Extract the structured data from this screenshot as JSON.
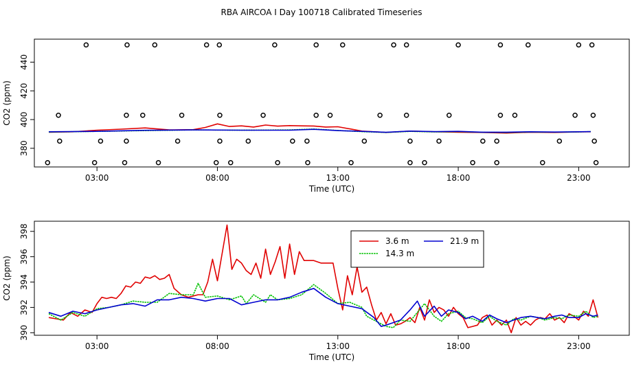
{
  "title": "RBA AIRCOA I  Day 100718  Calibrated Timeseries",
  "colors": {
    "3.6 m": "#e00000",
    "14.3 m": "#00c000",
    "21.9 m": "#0000d0",
    "axis": "#000000"
  },
  "chart_data": [
    {
      "type": "line",
      "name": "top",
      "xlabel": "Time (UTC)",
      "ylabel": "CO2 (ppm)",
      "xlim": [
        0.4,
        25.1
      ],
      "ylim": [
        367,
        456
      ],
      "xticks": [
        3,
        8,
        13,
        18,
        23
      ],
      "xtick_labels": [
        "03:00",
        "08:00",
        "13:00",
        "18:00",
        "23:00"
      ],
      "yticks": [
        380,
        400,
        420,
        440
      ],
      "ytick_labels": [
        "380",
        "400",
        "420",
        "440"
      ],
      "calibration_points": {
        "marker": "open-circle",
        "x": [
          2.55,
          4.25,
          5.4,
          7.55,
          8.08,
          10.38,
          12.1,
          13.2,
          15.32,
          15.85,
          18.0,
          19.75,
          20.9,
          23.0,
          23.55,
          1.4,
          4.22,
          4.9,
          6.52,
          8.1,
          9.9,
          12.1,
          12.68,
          14.75,
          15.85,
          17.62,
          19.75,
          20.35,
          22.85,
          23.6,
          0.95,
          2.9,
          4.15,
          5.55,
          7.95,
          8.55,
          10.5,
          11.75,
          13.55,
          16.0,
          16.6,
          18.6,
          19.6,
          21.5,
          23.72,
          1.45,
          3.15,
          4.22,
          6.35,
          8.1,
          9.28,
          11.12,
          11.72,
          14.1,
          16.0,
          17.2,
          19.02,
          19.6,
          22.2,
          23.65
        ],
        "y": [
          452,
          452,
          452,
          452,
          452,
          452,
          452,
          452,
          452,
          452,
          452,
          452,
          452,
          452,
          452,
          403,
          403,
          403,
          403,
          403,
          403,
          403,
          403,
          403,
          403,
          403,
          403,
          403,
          403,
          403,
          370,
          370,
          370,
          370,
          370,
          370,
          370,
          370,
          370,
          370,
          370,
          370,
          370,
          370,
          370,
          385,
          385,
          385,
          385,
          385,
          385,
          385,
          385,
          385,
          385,
          385,
          385,
          385,
          385,
          385
        ]
      },
      "series": [
        {
          "name": "3.6 m",
          "x": [
            1.0,
            2.0,
            3.0,
            4.0,
            5.0,
            6.0,
            7.0,
            7.5,
            8.0,
            8.5,
            9.0,
            9.5,
            10.0,
            10.5,
            11.0,
            11.5,
            12.0,
            12.5,
            13.0,
            13.5,
            14.0,
            15.0,
            16.0,
            17.0,
            18.0,
            19.0,
            20.0,
            21.0,
            22.0,
            23.0,
            23.5
          ],
          "y": [
            391.2,
            391.5,
            392.6,
            393.3,
            394.2,
            392.8,
            393.0,
            394.5,
            397.0,
            395.2,
            395.6,
            394.8,
            396.2,
            395.4,
            395.8,
            395.6,
            395.5,
            394.8,
            395.0,
            393.5,
            392.0,
            391.0,
            392.0,
            391.5,
            391.2,
            391.0,
            390.6,
            391.2,
            391.0,
            391.4,
            391.5
          ]
        },
        {
          "name": "14.3 m",
          "x": [
            1.0,
            3.0,
            5.0,
            7.0,
            9.0,
            11.0,
            12.0,
            13.0,
            14.0,
            15.0,
            16.0,
            17.0,
            18.0,
            19.0,
            20.0,
            21.0,
            22.0,
            23.0,
            23.5
          ],
          "y": [
            391.3,
            391.8,
            392.3,
            392.8,
            392.6,
            392.8,
            393.4,
            392.4,
            391.6,
            391.0,
            391.8,
            391.4,
            391.6,
            391.1,
            391.0,
            391.3,
            391.2,
            391.4,
            391.6
          ]
        },
        {
          "name": "21.9 m",
          "x": [
            1.0,
            3.0,
            5.0,
            7.0,
            9.0,
            11.0,
            12.0,
            13.0,
            14.0,
            15.0,
            16.0,
            17.0,
            18.0,
            19.0,
            20.0,
            21.0,
            22.0,
            23.0,
            23.5
          ],
          "y": [
            391.5,
            391.8,
            392.5,
            392.8,
            392.6,
            392.6,
            393.2,
            392.3,
            391.8,
            391.1,
            392.0,
            391.6,
            391.8,
            391.2,
            391.2,
            391.5,
            391.3,
            391.5,
            391.6
          ]
        }
      ]
    },
    {
      "type": "line",
      "name": "bottom",
      "xlabel": "Time (UTC)",
      "ylabel": "CO2 (ppm)",
      "xlim": [
        0.4,
        25.1
      ],
      "ylim": [
        389.8,
        398.8
      ],
      "xticks": [
        3,
        8,
        13,
        18,
        23
      ],
      "xtick_labels": [
        "03:00",
        "08:00",
        "13:00",
        "18:00",
        "23:00"
      ],
      "yticks": [
        390,
        392,
        394,
        396,
        398
      ],
      "ytick_labels": [
        "390",
        "392",
        "394",
        "396",
        "398"
      ],
      "legend": {
        "position": "top-center",
        "entries": [
          "3.6 m",
          "21.9 m",
          "14.3 m"
        ]
      },
      "series": [
        {
          "name": "3.6 m",
          "x": [
            1.0,
            1.3,
            1.6,
            1.9,
            2.2,
            2.5,
            2.8,
            3.0,
            3.2,
            3.4,
            3.6,
            3.8,
            4.0,
            4.2,
            4.4,
            4.6,
            4.8,
            5.0,
            5.2,
            5.4,
            5.6,
            5.8,
            6.0,
            6.2,
            6.5,
            6.8,
            7.0,
            7.2,
            7.4,
            7.6,
            7.8,
            8.0,
            8.2,
            8.4,
            8.6,
            8.8,
            9.0,
            9.2,
            9.4,
            9.6,
            9.8,
            10.0,
            10.2,
            10.4,
            10.6,
            10.8,
            11.0,
            11.2,
            11.4,
            11.6,
            11.8,
            12.0,
            12.3,
            12.6,
            12.8,
            13.0,
            13.2,
            13.4,
            13.6,
            13.8,
            14.0,
            14.2,
            14.4,
            14.6,
            14.8,
            15.0,
            15.2,
            15.4,
            15.6,
            15.8,
            16.0,
            16.2,
            16.4,
            16.6,
            16.8,
            17.0,
            17.2,
            17.4,
            17.6,
            17.8,
            18.0,
            18.2,
            18.4,
            18.6,
            18.8,
            19.0,
            19.2,
            19.4,
            19.6,
            19.8,
            20.0,
            20.2,
            20.4,
            20.6,
            20.8,
            21.0,
            21.2,
            21.4,
            21.6,
            21.8,
            22.0,
            22.2,
            22.4,
            22.6,
            22.8,
            23.0,
            23.2,
            23.4,
            23.6,
            23.8
          ],
          "y": [
            391.2,
            391.1,
            391.0,
            391.6,
            391.3,
            391.8,
            391.6,
            392.3,
            392.8,
            392.7,
            392.8,
            392.7,
            393.1,
            393.7,
            393.6,
            394.0,
            393.9,
            394.4,
            394.3,
            394.5,
            394.2,
            394.3,
            394.6,
            393.5,
            393.0,
            392.8,
            392.9,
            393.0,
            393.0,
            394.0,
            395.8,
            394.1,
            396.3,
            398.5,
            395.0,
            395.8,
            395.5,
            394.9,
            394.6,
            395.5,
            394.3,
            396.6,
            394.6,
            395.6,
            396.8,
            394.3,
            397.0,
            394.6,
            396.4,
            395.7,
            395.7,
            395.7,
            395.5,
            395.5,
            395.5,
            393.5,
            391.8,
            394.5,
            393.0,
            395.2,
            393.2,
            393.6,
            392.2,
            391.0,
            391.6,
            390.7,
            391.5,
            390.6,
            390.7,
            390.9,
            391.2,
            390.8,
            392.0,
            391.0,
            392.6,
            391.6,
            392.0,
            391.8,
            391.3,
            392.0,
            391.5,
            391.2,
            390.4,
            390.5,
            390.6,
            391.2,
            391.4,
            390.6,
            391.0,
            390.6,
            391.0,
            390.0,
            391.2,
            390.6,
            390.9,
            390.6,
            391.0,
            391.2,
            391.1,
            391.5,
            391.0,
            391.2,
            390.8,
            391.5,
            391.3,
            391.0,
            391.7,
            391.3,
            392.6,
            391.2
          ]
        },
        {
          "name": "14.3 m",
          "x": [
            1.0,
            1.5,
            2.0,
            2.5,
            3.0,
            3.5,
            4.0,
            4.5,
            5.0,
            5.5,
            6.0,
            6.5,
            7.0,
            7.2,
            7.5,
            8.0,
            8.5,
            9.0,
            9.2,
            9.5,
            10.0,
            10.2,
            10.5,
            11.0,
            11.5,
            12.0,
            12.5,
            13.0,
            13.5,
            14.0,
            14.2,
            14.5,
            14.8,
            15.0,
            15.3,
            15.6,
            16.0,
            16.3,
            16.6,
            17.0,
            17.3,
            17.6,
            18.0,
            18.3,
            18.6,
            19.0,
            19.3,
            19.6,
            20.0,
            20.3,
            20.6,
            21.0,
            21.3,
            21.6,
            22.0,
            22.3,
            22.6,
            23.0,
            23.3,
            23.6,
            23.8
          ],
          "y": [
            391.5,
            391.0,
            391.6,
            391.3,
            391.9,
            392.0,
            392.2,
            392.5,
            392.4,
            392.4,
            393.1,
            393.0,
            393.0,
            393.9,
            392.8,
            392.9,
            392.6,
            392.9,
            392.3,
            393.0,
            392.4,
            393.0,
            392.6,
            392.7,
            393.0,
            393.8,
            393.1,
            392.3,
            392.4,
            392.0,
            391.3,
            391.0,
            390.7,
            390.5,
            390.4,
            391.0,
            390.9,
            391.6,
            392.3,
            391.3,
            390.9,
            391.5,
            391.7,
            391.2,
            391.1,
            390.8,
            391.3,
            390.9,
            390.6,
            391.1,
            391.0,
            391.3,
            391.2,
            391.0,
            391.2,
            391.1,
            391.4,
            391.3,
            391.7,
            391.2,
            391.3
          ]
        },
        {
          "name": "21.9 m",
          "x": [
            1.0,
            1.5,
            2.0,
            2.5,
            3.0,
            3.5,
            4.0,
            4.5,
            5.0,
            5.5,
            6.0,
            6.5,
            7.0,
            7.5,
            8.0,
            8.5,
            9.0,
            9.5,
            10.0,
            10.5,
            11.0,
            11.5,
            12.0,
            12.5,
            13.0,
            13.5,
            14.0,
            14.5,
            14.8,
            15.0,
            15.3,
            15.6,
            16.0,
            16.3,
            16.6,
            17.0,
            17.3,
            17.6,
            18.0,
            18.3,
            18.6,
            19.0,
            19.3,
            19.6,
            20.0,
            20.3,
            20.6,
            21.0,
            21.3,
            21.6,
            22.0,
            22.3,
            22.6,
            23.0,
            23.3,
            23.6,
            23.8
          ],
          "y": [
            391.6,
            391.3,
            391.7,
            391.5,
            391.8,
            392.0,
            392.2,
            392.3,
            392.1,
            392.6,
            392.6,
            392.8,
            392.7,
            392.5,
            392.7,
            392.7,
            392.2,
            392.4,
            392.6,
            392.6,
            392.8,
            393.2,
            393.5,
            392.8,
            392.3,
            392.1,
            391.9,
            391.2,
            390.5,
            390.6,
            390.8,
            391.0,
            391.8,
            392.5,
            391.3,
            392.1,
            391.3,
            391.8,
            391.6,
            391.1,
            391.3,
            390.9,
            391.4,
            391.1,
            390.8,
            391.0,
            391.2,
            391.3,
            391.2,
            391.1,
            391.3,
            391.4,
            391.2,
            391.2,
            391.5,
            391.3,
            391.4
          ]
        }
      ]
    }
  ]
}
